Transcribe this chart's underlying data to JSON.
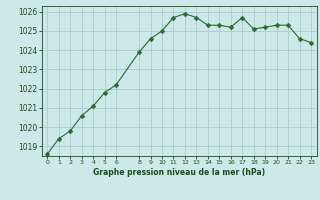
{
  "x": [
    0,
    1,
    2,
    3,
    4,
    5,
    6,
    8,
    9,
    10,
    11,
    12,
    13,
    14,
    15,
    16,
    17,
    18,
    19,
    20,
    21,
    22,
    23
  ],
  "y": [
    1018.6,
    1019.4,
    1019.8,
    1020.6,
    1021.1,
    1021.8,
    1022.2,
    1023.9,
    1024.6,
    1025.0,
    1025.7,
    1025.9,
    1025.7,
    1025.3,
    1025.3,
    1025.2,
    1025.7,
    1025.1,
    1025.2,
    1025.3,
    1025.3,
    1024.6,
    1024.4
  ],
  "line_color": "#2d6a2d",
  "marker": "D",
  "marker_size": 2.5,
  "bg_color": "#cce8e8",
  "grid_color": "#aacccc",
  "xlabel": "Graphe pression niveau de la mer (hPa)",
  "xlabel_color": "#1a4d1a",
  "tick_color": "#1a4d1a",
  "ylim": [
    1018.5,
    1026.3
  ],
  "xlim": [
    -0.5,
    23.5
  ],
  "yticks": [
    1019,
    1020,
    1021,
    1022,
    1023,
    1024,
    1025,
    1026
  ],
  "xticks": [
    0,
    1,
    2,
    3,
    4,
    5,
    6,
    8,
    9,
    10,
    11,
    12,
    13,
    14,
    15,
    16,
    17,
    18,
    19,
    20,
    21,
    22,
    23
  ]
}
